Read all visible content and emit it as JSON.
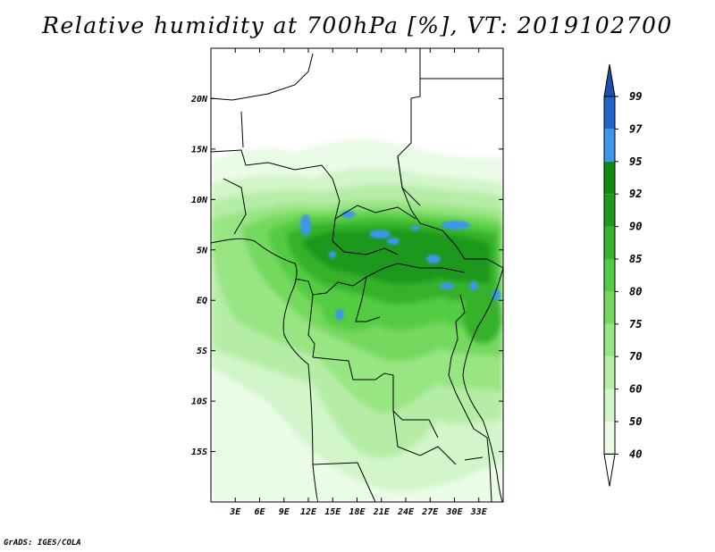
{
  "title": "Relative humidity at 700hPa [%], VT: 2019102700",
  "credit": "GrADS: IGES/COLA",
  "map": {
    "lon_range": [
      0,
      36
    ],
    "lat_range": [
      -20,
      25
    ],
    "lat_labels": [
      "20N",
      "15N",
      "10N",
      "5N",
      "EQ",
      "5S",
      "10S",
      "15S"
    ],
    "lat_values": [
      20,
      15,
      10,
      5,
      0,
      -5,
      -10,
      -15
    ],
    "lon_labels": [
      "3E",
      "6E",
      "9E",
      "12E",
      "15E",
      "18E",
      "21E",
      "24E",
      "27E",
      "30E",
      "33E"
    ],
    "lon_values": [
      3,
      6,
      9,
      12,
      15,
      18,
      21,
      24,
      27,
      30,
      33
    ]
  },
  "colorbar": {
    "levels": [
      "99",
      "97",
      "95",
      "92",
      "90",
      "85",
      "80",
      "75",
      "70",
      "60",
      "50",
      "40"
    ],
    "colors": {
      "40": "#ffffff",
      "50": "#eafbe6",
      "60": "#d2f5c9",
      "70": "#b6eda6",
      "75": "#98e583",
      "80": "#75d95e",
      "85": "#52cc42",
      "90": "#36b22b",
      "92": "#1f981c",
      "95": "#118a10",
      "97": "#3c96ea",
      "99": "#1f64c8",
      "100": "#1a4fb0"
    }
  }
}
